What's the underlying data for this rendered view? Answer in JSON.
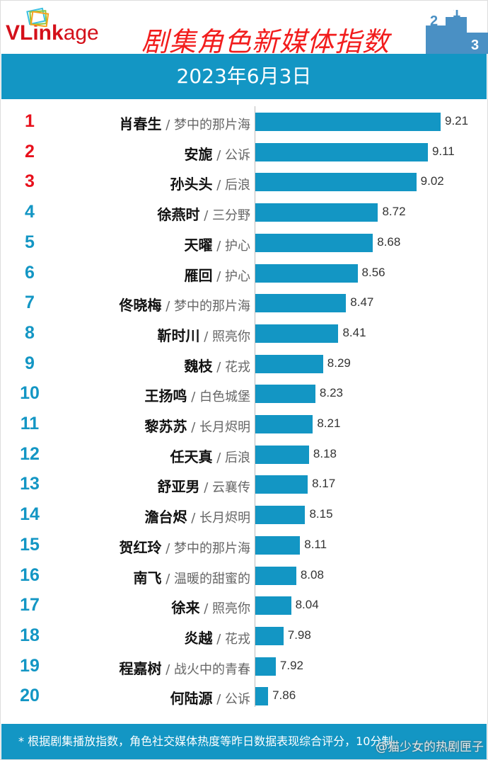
{
  "header": {
    "logo_text": "VLinkage",
    "title": "剧集角色新媒体指数",
    "date": "2023年6月3日"
  },
  "colors": {
    "bar": "#1396c4",
    "top_rank": "#e8101c",
    "rank": "#1396c4",
    "title": "#f21d1d"
  },
  "chart_data": {
    "type": "bar",
    "orientation": "horizontal",
    "title": "剧集角色新媒体指数",
    "subtitle": "2023年6月3日",
    "ranks": [
      "1",
      "2",
      "3",
      "4",
      "5",
      "6",
      "7",
      "8",
      "9",
      "10",
      "11",
      "12",
      "13",
      "14",
      "15",
      "16",
      "17",
      "18",
      "19",
      "20"
    ],
    "characters": [
      "肖春生",
      "安旎",
      "孙头头",
      "徐燕时",
      "天曜",
      "雁回",
      "佟晓梅",
      "靳时川",
      "魏枝",
      "王扬鸣",
      "黎苏苏",
      "任天真",
      "舒亚男",
      "澹台烬",
      "贺红玲",
      "南飞",
      "徐来",
      "炎越",
      "程嘉树",
      "何陆源"
    ],
    "dramas": [
      "梦中的那片海",
      "公诉",
      "后浪",
      "三分野",
      "护心",
      "护心",
      "梦中的那片海",
      "照亮你",
      "花戎",
      "白色城堡",
      "长月烬明",
      "后浪",
      "云襄传",
      "长月烬明",
      "梦中的那片海",
      "温暖的甜蜜的",
      "照亮你",
      "花戎",
      "战火中的青春",
      "公诉"
    ],
    "values": [
      9.21,
      9.11,
      9.02,
      8.72,
      8.68,
      8.56,
      8.47,
      8.41,
      8.29,
      8.23,
      8.21,
      8.18,
      8.17,
      8.15,
      8.11,
      8.08,
      8.04,
      7.98,
      7.92,
      7.86
    ],
    "value_labels": [
      "9.21",
      "9.11",
      "9.02",
      "8.72",
      "8.68",
      "8.56",
      "8.47",
      "8.41",
      "8.29",
      "8.23",
      "8.21",
      "8.18",
      "8.17",
      "8.15",
      "8.11",
      "8.08",
      "8.04",
      "7.98",
      "7.92",
      "7.86"
    ]
  },
  "footer": {
    "note": "* 根据剧集播放指数，角色社交媒体热度等昨日数据表现综合评分，10分制",
    "watermark": "@猫少女的热剧匣子"
  }
}
